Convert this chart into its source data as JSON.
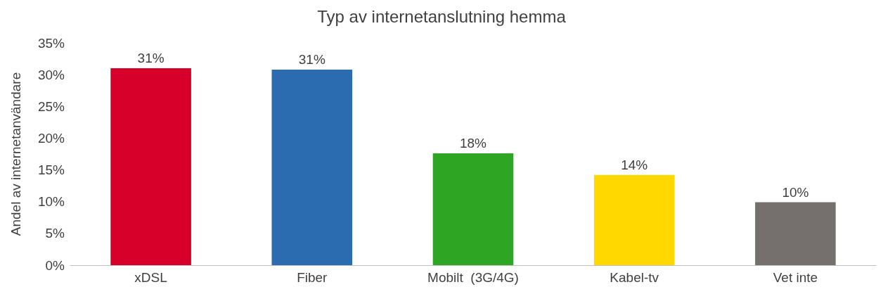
{
  "chart_data": {
    "type": "bar",
    "title": "Typ av internetanslutning hemma",
    "ylabel": "Andel av internetanvändare",
    "categories": [
      "xDSL",
      "Fiber",
      "Mobilt  (3G/4G)",
      "Kabel-tv",
      "Vet inte"
    ],
    "values": [
      31.0,
      30.8,
      17.6,
      14.2,
      9.9
    ],
    "colors": [
      "#d7002a",
      "#2b6cb0",
      "#2ea623",
      "#ffd800",
      "#75706e"
    ],
    "value_labels": [
      "31%",
      "31%",
      "18%",
      "14%",
      "10%"
    ],
    "ylim": [
      0,
      35
    ],
    "yticks": [
      {
        "value": 0,
        "label": "0%"
      },
      {
        "value": 5,
        "label": "5%"
      },
      {
        "value": 10,
        "label": "10%"
      },
      {
        "value": 15,
        "label": "15%"
      },
      {
        "value": 20,
        "label": "20%"
      },
      {
        "value": 25,
        "label": "25%"
      },
      {
        "value": 30,
        "label": "30%"
      },
      {
        "value": 35,
        "label": "35%"
      }
    ],
    "grid": false
  }
}
